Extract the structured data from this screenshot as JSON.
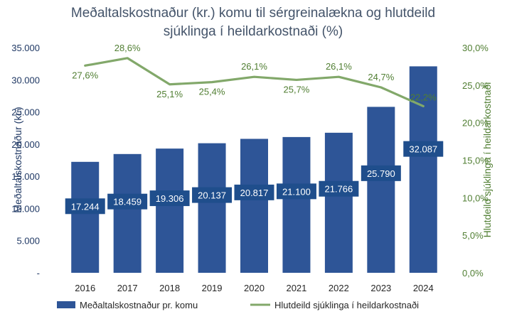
{
  "chart_data": {
    "type": "bar",
    "title_line1": "Meðaltalskostnaður (kr.) komu til sérgreinalækna og hlutdeild",
    "title_line2": "sjúklinga í heildarkostnaði (%)",
    "categories": [
      "2016",
      "2017",
      "2018",
      "2019",
      "2020",
      "2021",
      "2022",
      "2023",
      "2024"
    ],
    "series": [
      {
        "name": "Meðaltalskostnaður pr. komu",
        "type": "bar",
        "axis": "left",
        "color": "#2e5597",
        "values": [
          17244,
          18459,
          19306,
          20137,
          20817,
          21100,
          21766,
          25790,
          32087
        ],
        "labels": [
          "17.244",
          "18.459",
          "19.306",
          "20.137",
          "20.817",
          "21.100",
          "21.766",
          "25.790",
          "32.087"
        ]
      },
      {
        "name": "Hlutdeild sjúklinga í heildarkostnaði",
        "type": "line",
        "axis": "right",
        "color": "#82a86a",
        "values": [
          27.6,
          28.6,
          25.1,
          25.4,
          26.1,
          25.7,
          26.1,
          24.7,
          22.2
        ],
        "labels": [
          "27,6%",
          "28,6%",
          "25,1%",
          "25,4%",
          "26,1%",
          "25,7%",
          "26,1%",
          "24,7%",
          "22,2%"
        ]
      }
    ],
    "ylabel": "Meðaltalskostnaður (kr.)",
    "ylim": [
      0,
      35000
    ],
    "yticks": [
      "-",
      "5.000",
      "10.000",
      "15.000",
      "20.000",
      "25.000",
      "30.000",
      "35.000"
    ],
    "y2label": "Hlutdeild sjúklinga í heildarkostnaði",
    "y2lim": [
      0,
      30
    ],
    "y2ticks": [
      "0,0%",
      "5,0%",
      "10,0%",
      "15,0%",
      "20,0%",
      "25,0%",
      "30,0%"
    ],
    "grid": false,
    "legend": "bottom"
  }
}
